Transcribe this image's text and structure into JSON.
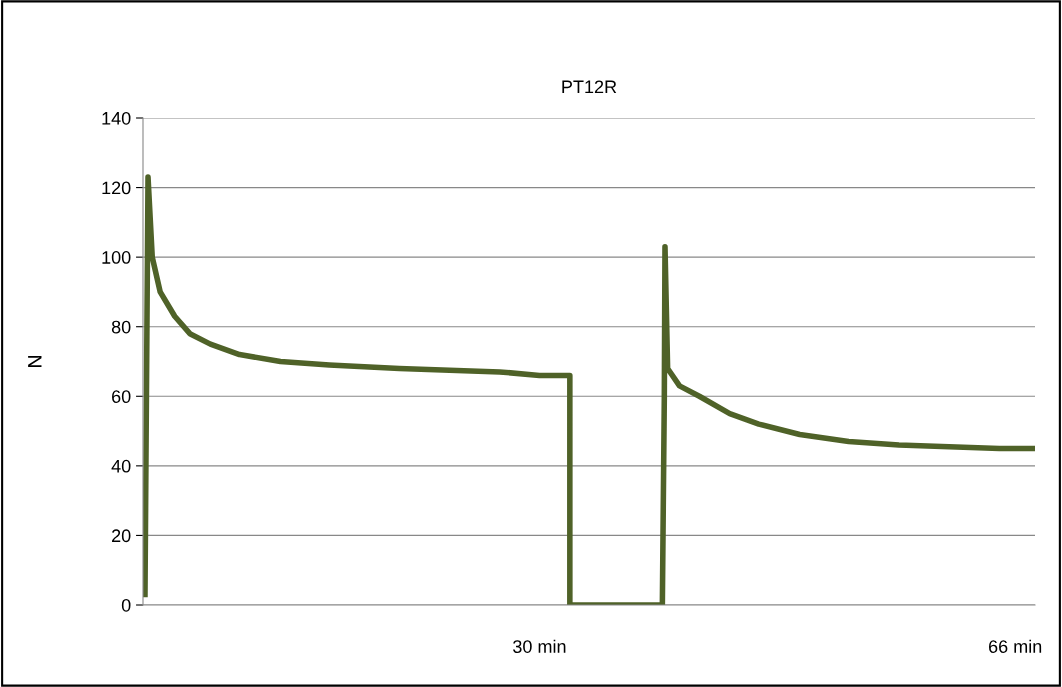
{
  "chart_data": {
    "type": "line",
    "title": "PT12R",
    "ylabel": "N",
    "x": [
      0.15,
      0.38,
      0.7,
      1.3,
      2.4,
      3.55,
      5.1,
      7.3,
      10.4,
      14.1,
      19.4,
      23.2,
      27,
      30,
      32.3,
      32.3,
      39.3,
      39.45,
      39.5,
      39.7,
      40.6,
      42.1,
      44.4,
      46.6,
      49.7,
      53.4,
      57.2,
      61,
      64.8,
      67.4
    ],
    "series": [
      {
        "color": "#4f6228",
        "values": [
          3,
          123,
          100,
          90,
          83,
          78,
          75,
          72,
          70,
          69,
          68,
          67.5,
          67,
          66,
          66,
          0,
          0,
          60,
          103,
          68,
          63,
          60,
          55,
          52,
          49,
          47,
          46,
          45.5,
          45,
          45
        ]
      }
    ],
    "xlim": [
      0,
      67.5
    ],
    "xticks": [
      {
        "value": 30,
        "label": "30 min"
      },
      {
        "value": 66,
        "label": "66 min"
      }
    ],
    "ylim": [
      0,
      140
    ],
    "yticks": [
      0,
      20,
      40,
      60,
      80,
      100,
      120,
      140
    ],
    "grid": "y",
    "legend": false,
    "marker": "none",
    "line_style": "solid"
  }
}
